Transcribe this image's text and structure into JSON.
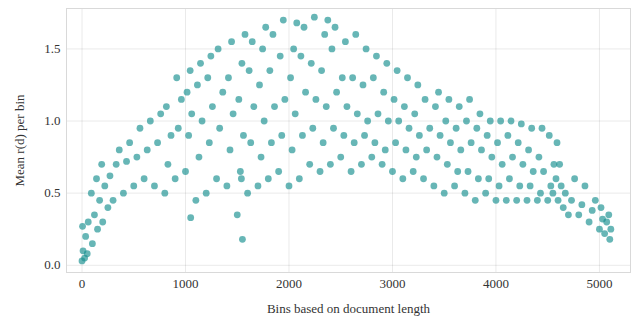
{
  "chart_data": {
    "type": "scatter",
    "x_label": "Bins based on document length",
    "y_label": "Mean r(d) per bin",
    "color": "#158f8f",
    "grid": true,
    "xlim": [
      -150,
      5300
    ],
    "ylim": [
      -0.05,
      1.78
    ],
    "xticks": [
      0,
      1000,
      2000,
      3000,
      4000,
      5000
    ],
    "yticks": [
      {
        "value": 0,
        "label": "0.0"
      },
      {
        "value": 0.5,
        "label": "0.5"
      },
      {
        "value": 1,
        "label": "1.0"
      },
      {
        "value": 1.5,
        "label": "1.5"
      }
    ],
    "x": [
      0,
      10,
      5,
      25,
      35,
      50,
      60,
      100,
      120,
      90,
      150,
      170,
      140,
      200,
      220,
      190,
      250,
      270,
      300,
      330,
      360,
      400,
      430,
      460,
      500,
      530,
      560,
      600,
      630,
      660,
      700,
      730,
      760,
      800,
      830,
      860,
      815,
      900,
      930,
      960,
      915,
      1000,
      1030,
      1060,
      1015,
      1045,
      1050,
      1100,
      1130,
      1160,
      1115,
      1145,
      1200,
      1230,
      1260,
      1215,
      1245,
      1300,
      1330,
      1360,
      1315,
      1400,
      1430,
      1460,
      1415,
      1445,
      1500,
      1530,
      1560,
      1515,
      1545,
      1575,
      1550,
      1540,
      1600,
      1630,
      1660,
      1615,
      1645,
      1700,
      1730,
      1760,
      1715,
      1745,
      1775,
      1800,
      1830,
      1860,
      1815,
      1845,
      1900,
      1930,
      1960,
      1915,
      1945,
      2000,
      2030,
      2060,
      2015,
      2045,
      2075,
      2100,
      2130,
      2160,
      2115,
      2145,
      2200,
      2230,
      2260,
      2215,
      2245,
      2300,
      2330,
      2360,
      2315,
      2345,
      2375,
      2400,
      2430,
      2460,
      2415,
      2445,
      2500,
      2530,
      2560,
      2515,
      2545,
      2600,
      2630,
      2660,
      2615,
      2645,
      2700,
      2730,
      2760,
      2715,
      2745,
      2800,
      2830,
      2860,
      2815,
      2845,
      2900,
      2930,
      2960,
      2915,
      2945,
      3000,
      3030,
      3060,
      3015,
      3045,
      3100,
      3130,
      3160,
      3115,
      3145,
      3200,
      3230,
      3260,
      3215,
      3245,
      3300,
      3330,
      3360,
      3315,
      3400,
      3430,
      3460,
      3415,
      3445,
      3500,
      3530,
      3560,
      3515,
      3545,
      3600,
      3630,
      3660,
      3615,
      3645,
      3700,
      3730,
      3760,
      3715,
      3745,
      3800,
      3830,
      3860,
      3815,
      3845,
      3900,
      3930,
      3960,
      3915,
      3945,
      4000,
      4030,
      4060,
      4015,
      4045,
      4100,
      4130,
      4160,
      4115,
      4145,
      4200,
      4230,
      4260,
      4215,
      4245,
      4300,
      4330,
      4360,
      4315,
      4345,
      4400,
      4430,
      4460,
      4415,
      4445,
      4500,
      4530,
      4560,
      4515,
      4550,
      4580,
      4590,
      4600,
      4630,
      4615,
      4650,
      4670,
      4700,
      4730,
      4760,
      4800,
      4830,
      4860,
      4900,
      4930,
      4960,
      5000,
      5030,
      5015,
      5050,
      5070,
      5100,
      5110,
      5090
    ],
    "values": [
      0.03,
      0.1,
      0.27,
      0.05,
      0.2,
      0.08,
      0.3,
      0.15,
      0.35,
      0.5,
      0.25,
      0.45,
      0.6,
      0.3,
      0.55,
      0.7,
      0.4,
      0.62,
      0.45,
      0.7,
      0.8,
      0.5,
      0.72,
      0.85,
      0.55,
      0.75,
      0.95,
      0.6,
      0.8,
      1.0,
      0.55,
      0.85,
      1.05,
      0.5,
      0.7,
      0.9,
      1.1,
      0.6,
      0.95,
      1.15,
      1.3,
      0.65,
      0.9,
      1.05,
      1.2,
      1.35,
      0.33,
      0.45,
      0.75,
      1.0,
      1.25,
      1.4,
      0.5,
      0.85,
      1.1,
      1.3,
      1.45,
      0.6,
      0.95,
      1.2,
      1.5,
      0.55,
      0.8,
      1.05,
      1.3,
      1.55,
      0.35,
      0.65,
      0.9,
      1.15,
      1.4,
      1.6,
      0.18,
      0.6,
      0.5,
      0.85,
      1.1,
      1.35,
      1.55,
      0.55,
      0.75,
      1.0,
      1.25,
      1.5,
      1.65,
      0.6,
      0.85,
      1.1,
      1.35,
      1.6,
      0.65,
      0.9,
      1.15,
      1.45,
      1.7,
      0.55,
      0.8,
      1.05,
      1.3,
      1.5,
      1.68,
      0.6,
      0.9,
      1.2,
      1.45,
      1.65,
      0.7,
      0.95,
      1.15,
      1.4,
      1.72,
      0.65,
      0.85,
      1.1,
      1.35,
      1.6,
      1.7,
      0.7,
      0.95,
      1.2,
      1.5,
      1.65,
      0.75,
      0.9,
      1.1,
      1.3,
      1.55,
      0.65,
      0.85,
      1.05,
      1.3,
      1.6,
      0.7,
      0.9,
      1.0,
      1.25,
      1.5,
      0.75,
      0.85,
      1.05,
      1.3,
      1.45,
      0.7,
      0.8,
      1.0,
      1.2,
      1.4,
      0.65,
      0.85,
      1.0,
      1.15,
      1.35,
      0.6,
      0.8,
      0.95,
      1.1,
      1.3,
      0.65,
      0.75,
      0.9,
      1.05,
      1.25,
      0.6,
      0.8,
      0.95,
      1.15,
      0.55,
      0.75,
      0.9,
      1.1,
      1.2,
      0.5,
      0.7,
      0.85,
      1.0,
      1.15,
      0.55,
      0.65,
      0.8,
      0.95,
      1.1,
      0.5,
      0.65,
      0.85,
      1.0,
      1.15,
      0.45,
      0.6,
      0.8,
      0.95,
      1.05,
      0.5,
      0.6,
      0.75,
      0.9,
      1.0,
      0.45,
      0.55,
      0.7,
      0.85,
      1.0,
      0.45,
      0.6,
      0.75,
      0.9,
      1.0,
      0.45,
      0.55,
      0.7,
      0.85,
      0.98,
      0.45,
      0.55,
      0.65,
      0.8,
      0.95,
      0.45,
      0.5,
      0.65,
      0.75,
      0.95,
      0.45,
      0.55,
      0.7,
      0.9,
      0.5,
      0.6,
      0.85,
      0.45,
      0.55,
      0.7,
      0.4,
      0.5,
      0.35,
      0.45,
      0.6,
      0.35,
      0.42,
      0.55,
      0.3,
      0.38,
      0.45,
      0.25,
      0.32,
      0.4,
      0.22,
      0.3,
      0.18,
      0.25,
      0.35
    ]
  }
}
